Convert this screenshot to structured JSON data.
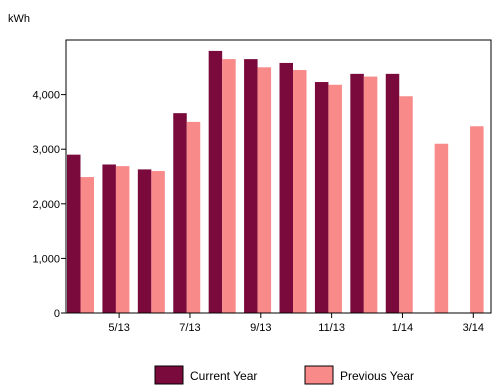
{
  "chart_data": {
    "type": "bar",
    "unit_label": "kWh",
    "x_tick_labels": [
      "5/13",
      "7/13",
      "9/13",
      "11/13",
      "1/14",
      "3/14"
    ],
    "y_tick_labels": [
      "0",
      "1,000",
      "2,000",
      "3,000",
      "4,000"
    ],
    "ylim": [
      0,
      5000
    ],
    "grid": false,
    "legend_position": "bottom",
    "series": [
      {
        "name": "Current Year",
        "color": "#7a0a3c",
        "values": [
          2900,
          2720,
          2630,
          3660,
          4800,
          4650,
          4580,
          4230,
          4380,
          4380,
          null,
          null
        ]
      },
      {
        "name": "Previous Year",
        "color": "#f88a8a",
        "values": [
          2490,
          2690,
          2600,
          3500,
          4650,
          4500,
          4450,
          4180,
          4330,
          3970,
          3100,
          3420
        ]
      }
    ]
  }
}
